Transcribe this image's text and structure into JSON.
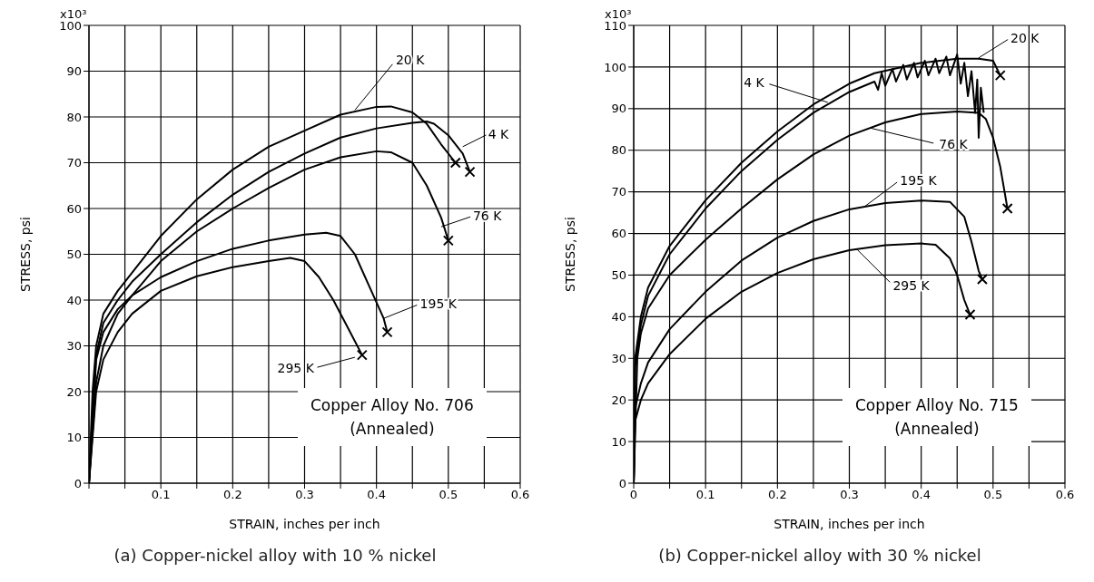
{
  "chart_data": [
    {
      "type": "line",
      "title": "(a) Copper-nickel alloy with 10 % nickel",
      "xlabel": "STRAIN, inches per inch",
      "ylabel": "STRESS, psi",
      "xlim": [
        0,
        0.6
      ],
      "xticks": [
        {
          "value": 0,
          "label": null
        },
        {
          "value": 0.05,
          "label": null
        },
        0.1,
        {
          "value": 0.15,
          "label": null
        },
        0.2,
        {
          "value": 0.25,
          "label": null
        },
        0.3,
        {
          "value": 0.35,
          "label": null
        },
        0.4,
        {
          "value": 0.45,
          "label": null
        },
        0.5,
        {
          "value": 0.55,
          "label": null
        },
        0.6
      ],
      "ylim": [
        0,
        100
      ],
      "yticks": [
        0,
        10,
        20,
        30,
        40,
        50,
        60,
        70,
        80,
        90,
        100
      ],
      "grid": true,
      "line_style": "solid",
      "series": [
        {
          "color": "#000000",
          "x": [
            0,
            0.005,
            0.01,
            0.02,
            0.04,
            0.05,
            0.1,
            0.15,
            0.2,
            0.25,
            0.3,
            0.35,
            0.4,
            0.42,
            0.45,
            0.47,
            0.49,
            0.51
          ],
          "values": [
            0,
            20,
            30,
            37,
            42,
            44,
            54,
            62,
            68.5,
            73.5,
            77,
            80.5,
            82.2,
            82.3,
            81,
            78.5,
            74,
            70
          ]
        },
        {
          "color": "#000000",
          "x": [
            0,
            0.01,
            0.02,
            0.04,
            0.06,
            0.1,
            0.15,
            0.2,
            0.25,
            0.3,
            0.35,
            0.4,
            0.45,
            0.47,
            0.48,
            0.5,
            0.52,
            0.53
          ],
          "values": [
            0,
            28,
            35,
            40,
            44,
            50,
            57,
            63,
            68,
            72,
            75.5,
            77.5,
            78.7,
            79,
            78.5,
            76,
            72,
            68
          ]
        },
        {
          "color": "#000000",
          "x": [
            0,
            0.01,
            0.02,
            0.04,
            0.06,
            0.1,
            0.15,
            0.2,
            0.25,
            0.3,
            0.35,
            0.4,
            0.42,
            0.45,
            0.47,
            0.49,
            0.5
          ],
          "values": [
            0,
            27,
            33,
            38,
            41,
            48.5,
            55,
            60,
            64.5,
            68.5,
            71.2,
            72.5,
            72.3,
            70,
            65,
            58,
            53
          ]
        },
        {
          "color": "#000000",
          "x": [
            0,
            0.01,
            0.02,
            0.04,
            0.06,
            0.1,
            0.15,
            0.2,
            0.25,
            0.3,
            0.33,
            0.35,
            0.37,
            0.39,
            0.41,
            0.415
          ],
          "values": [
            0,
            22,
            30,
            37,
            41,
            45,
            48.5,
            51.2,
            53,
            54.3,
            54.7,
            54,
            50,
            43,
            36,
            33
          ]
        },
        {
          "color": "#000000",
          "x": [
            0,
            0.01,
            0.02,
            0.04,
            0.06,
            0.1,
            0.15,
            0.2,
            0.25,
            0.28,
            0.3,
            0.32,
            0.34,
            0.36,
            0.38
          ],
          "values": [
            0,
            20,
            27,
            33,
            37,
            42,
            45.2,
            47.2,
            48.5,
            49.2,
            48.5,
            45,
            40,
            34,
            28
          ]
        },
        {
          "type": "scatter",
          "marker": "cross",
          "color": "#000000",
          "x": [
            0.51,
            0.53,
            0.5,
            0.415,
            0.38
          ],
          "values": [
            70,
            68,
            53,
            33,
            28
          ]
        }
      ],
      "annotations": [
        {
          "text": "20 K",
          "x": 0.37,
          "y": 81.5
        },
        {
          "text": "4 K",
          "x": 0.52,
          "y": 73.5
        },
        {
          "text": "76 K",
          "x": 0.49,
          "y": 56
        },
        {
          "text": "195 K",
          "x": 0.41,
          "y": 36
        },
        {
          "text": "295 K",
          "x": 0.37,
          "y": 27.5
        },
        "x10³",
        "Copper Alloy No. 706",
        "(Annealed)"
      ]
    },
    {
      "type": "line",
      "title": "(b) Copper-nickel alloy with 30 % nickel",
      "xlabel": "STRAIN, inches per inch",
      "ylabel": "STRESS, psi",
      "xlim": [
        0,
        0.6
      ],
      "xticks": [
        0,
        {
          "value": 0.05,
          "label": null
        },
        0.1,
        {
          "value": 0.15,
          "label": null
        },
        0.2,
        {
          "value": 0.25,
          "label": null
        },
        0.3,
        {
          "value": 0.35,
          "label": null
        },
        0.4,
        {
          "value": 0.45,
          "label": null
        },
        0.5,
        {
          "value": 0.55,
          "label": null
        },
        0.6
      ],
      "ylim": [
        0,
        110
      ],
      "yticks": [
        0,
        10,
        20,
        30,
        40,
        50,
        60,
        70,
        80,
        90,
        100,
        110
      ],
      "grid": true,
      "line_style": "solid",
      "series": [
        {
          "color": "#000000",
          "x": [
            0,
            0.002,
            0.01,
            0.02,
            0.05,
            0.1,
            0.15,
            0.2,
            0.25,
            0.3,
            0.335,
            0.4,
            0.45,
            0.48,
            0.5,
            0.51
          ],
          "values": [
            0,
            30,
            40,
            47,
            57,
            68,
            77,
            84.5,
            91,
            96,
            98.5,
            101,
            102,
            102,
            101.5,
            98
          ]
        },
        {
          "color": "#000000",
          "x": [
            0,
            0.002,
            0.01,
            0.02,
            0.05,
            0.1,
            0.15,
            0.2,
            0.25,
            0.3,
            0.335,
            0.34,
            0.345,
            0.35,
            0.36,
            0.365,
            0.375,
            0.38,
            0.39,
            0.395,
            0.405,
            0.41,
            0.42,
            0.425,
            0.435,
            0.44,
            0.45,
            0.455,
            0.46,
            0.465,
            0.47,
            0.475,
            0.478,
            0.48,
            0.483,
            0.487
          ],
          "values": [
            0,
            28,
            38,
            45,
            55,
            66,
            75,
            82.5,
            89,
            94,
            96.5,
            94.5,
            98.5,
            95.5,
            99.5,
            96.5,
            100.5,
            97,
            101,
            97.5,
            101.5,
            98,
            102,
            98.5,
            102.5,
            98,
            103,
            96,
            101,
            93,
            99,
            89,
            97,
            83,
            95,
            89
          ]
        },
        {
          "color": "#000000",
          "x": [
            0,
            0.005,
            0.01,
            0.02,
            0.05,
            0.1,
            0.15,
            0.2,
            0.25,
            0.3,
            0.35,
            0.4,
            0.45,
            0.48,
            0.49,
            0.5,
            0.51,
            0.52
          ],
          "values": [
            0,
            30,
            36,
            42,
            50,
            58.5,
            66,
            73,
            79,
            83.5,
            86.7,
            88.7,
            89.3,
            89,
            87.5,
            83,
            76,
            66
          ]
        },
        {
          "color": "#000000",
          "x": [
            0,
            0.002,
            0.01,
            0.02,
            0.05,
            0.1,
            0.15,
            0.2,
            0.25,
            0.3,
            0.35,
            0.4,
            0.44,
            0.46,
            0.47,
            0.48,
            0.485
          ],
          "values": [
            0,
            18,
            24,
            29,
            37,
            46,
            53.5,
            59,
            63,
            65.8,
            67.3,
            67.9,
            67.6,
            64,
            58,
            51,
            49
          ]
        },
        {
          "color": "#000000",
          "x": [
            0,
            0.002,
            0.01,
            0.02,
            0.05,
            0.1,
            0.15,
            0.2,
            0.25,
            0.3,
            0.35,
            0.4,
            0.42,
            0.44,
            0.45,
            0.46,
            0.468
          ],
          "values": [
            0,
            15,
            20,
            24,
            31,
            39.5,
            46,
            50.5,
            53.8,
            56,
            57.2,
            57.6,
            57.3,
            54,
            50,
            44,
            40.5
          ]
        },
        {
          "type": "scatter",
          "marker": "cross",
          "color": "#000000",
          "x": [
            0.51,
            0.52,
            0.485,
            0.468
          ],
          "values": [
            98,
            66,
            49,
            40.5
          ]
        }
      ],
      "annotations": [
        {
          "text": "20 K",
          "x": 0.48,
          "y": 102.2
        },
        {
          "text": "4 K",
          "x": 0.27,
          "y": 91.5
        },
        {
          "text": "76 K",
          "x": 0.33,
          "y": 85.3
        },
        {
          "text": "195 K",
          "x": 0.32,
          "y": 66.3
        },
        {
          "text": "295 K",
          "x": 0.31,
          "y": 56.3
        },
        "x10³",
        "Copper Alloy No. 715",
        "(Annealed)"
      ]
    }
  ]
}
